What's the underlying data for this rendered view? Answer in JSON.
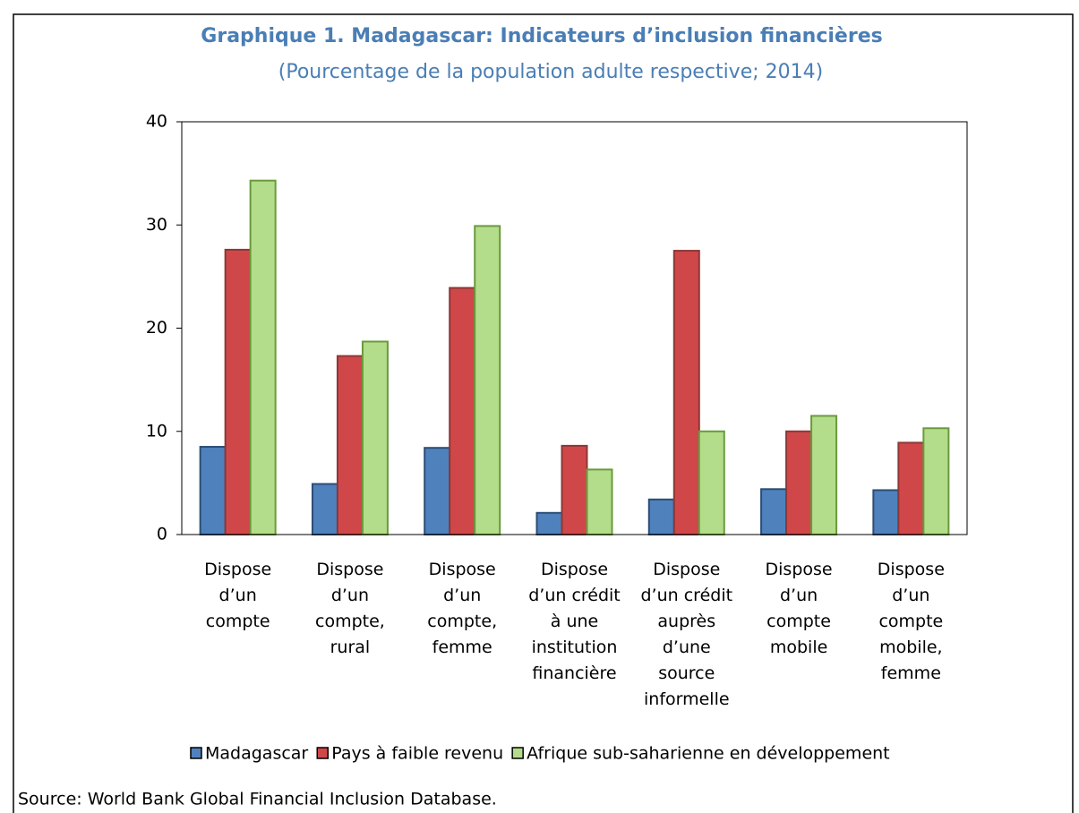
{
  "chart_data": {
    "type": "bar",
    "title": "Graphique 1. Madagascar: Indicateurs d’inclusion financières",
    "subtitle": "(Pourcentage de la population adulte respective; 2014)",
    "categories": [
      "Dispose\nd’un\ncompte",
      "Dispose\nd’un\ncompte,\nrural",
      "Dispose\nd’un\ncompte,\nfemme",
      "Dispose\nd’un crédit\nà une\ninstitution\nfinancière",
      "Dispose\nd’un crédit\nauprès\nd’une\nsource\ninformelle",
      "Dispose\nd’un\ncompte\nmobile",
      "Dispose\nd’un\ncompte\nmobile,\nfemme"
    ],
    "series": [
      {
        "name": "Madagascar",
        "color": "#4f81bd",
        "values": [
          8.5,
          4.9,
          8.4,
          2.1,
          3.4,
          4.4,
          4.3
        ]
      },
      {
        "name": "Pays à faible revenu",
        "color": "#d0474a",
        "values": [
          27.6,
          17.3,
          23.9,
          8.6,
          27.5,
          10.0,
          8.9
        ]
      },
      {
        "name": "Afrique sub-saharienne en développement",
        "color": "#b3dd8a",
        "values": [
          34.3,
          18.7,
          29.9,
          6.3,
          10.0,
          11.5,
          10.3
        ]
      }
    ],
    "ylim": [
      0,
      40
    ],
    "yticks": [
      0,
      10,
      20,
      30,
      40
    ],
    "grid": false,
    "legend": "bottom",
    "source": "Source: World Bank Global Financial Inclusion Database."
  }
}
